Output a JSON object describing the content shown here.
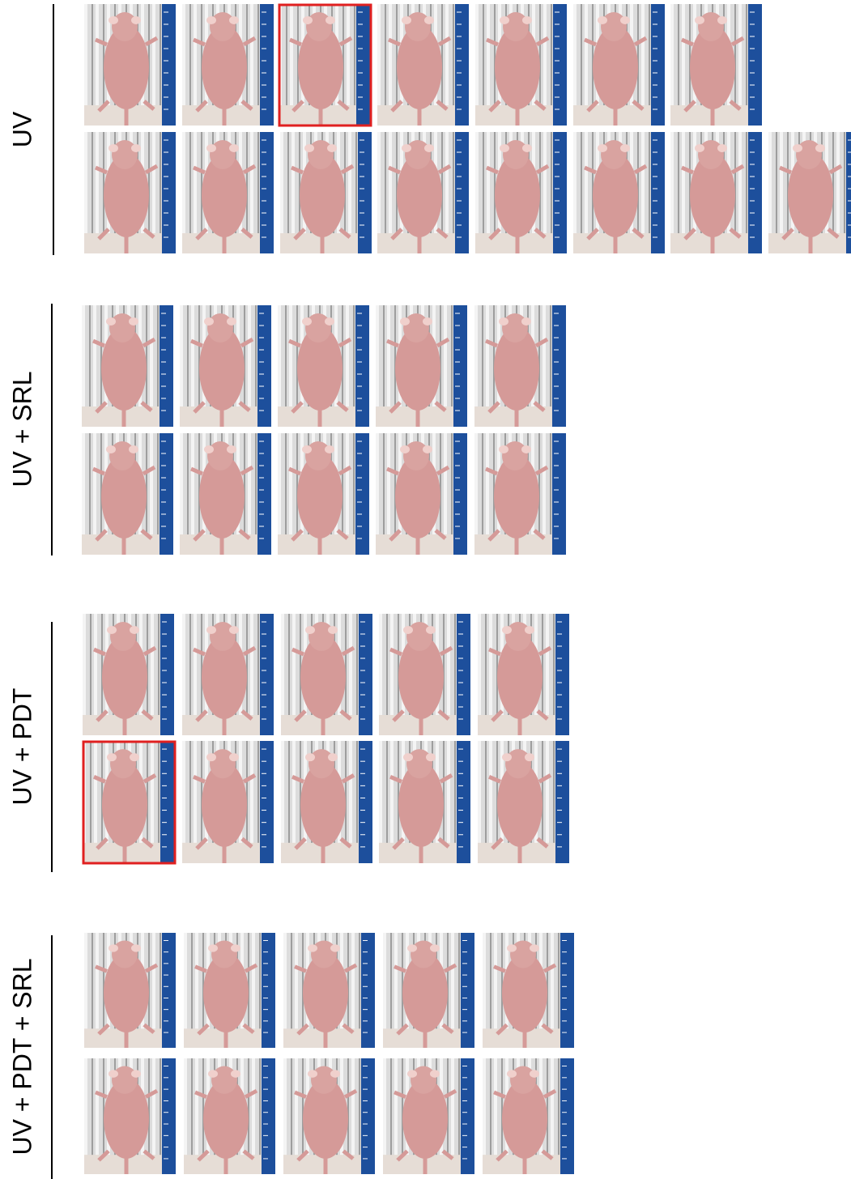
{
  "groups": [
    {
      "label": "UV"
    },
    {
      "label": "UV + SRL"
    },
    {
      "label": "UV + PDT"
    },
    {
      "label": "UV + PDT + SRL"
    }
  ]
}
